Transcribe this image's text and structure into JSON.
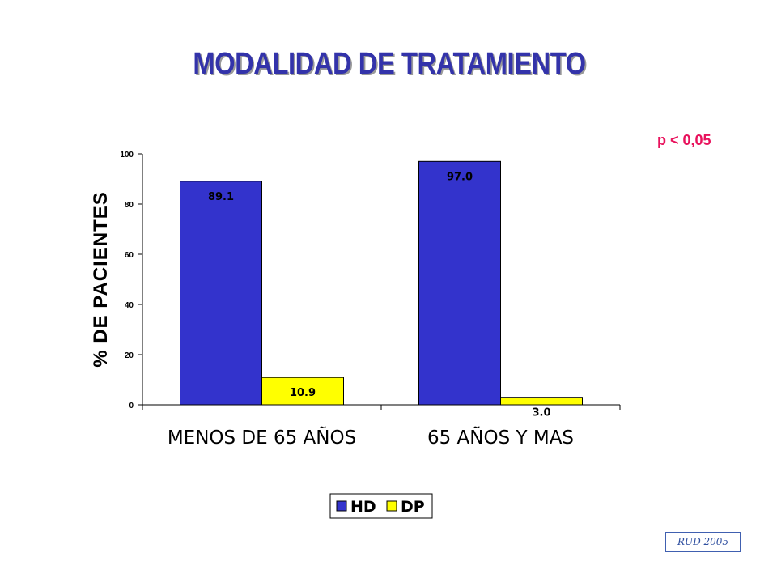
{
  "title": "MODALIDAD DE TRATAMIENTO",
  "annotation": "p < 0,05",
  "source_stamp": "RUD 2005",
  "colors": {
    "title": "#3333AA",
    "HD": "#3333CC",
    "DP": "#FFFF00",
    "annotation": "#E8125C"
  },
  "chart_data": {
    "type": "bar",
    "ylabel": "% DE PACIENTES",
    "xlabel": "",
    "ylim": [
      0,
      100
    ],
    "yticks": [
      0,
      20,
      40,
      60,
      80,
      100
    ],
    "categories": [
      "MENOS DE 65 AÑOS",
      "65 AÑOS Y MAS"
    ],
    "series": [
      {
        "name": "HD",
        "color": "#3333CC",
        "values": [
          89.1,
          97.0
        ],
        "labels": [
          "89.1",
          "97.0"
        ]
      },
      {
        "name": "DP",
        "color": "#FFFF00",
        "values": [
          10.9,
          3.0
        ],
        "labels": [
          "10.9",
          "3.0"
        ]
      }
    ],
    "legend": "bottom-center",
    "grid": false
  }
}
